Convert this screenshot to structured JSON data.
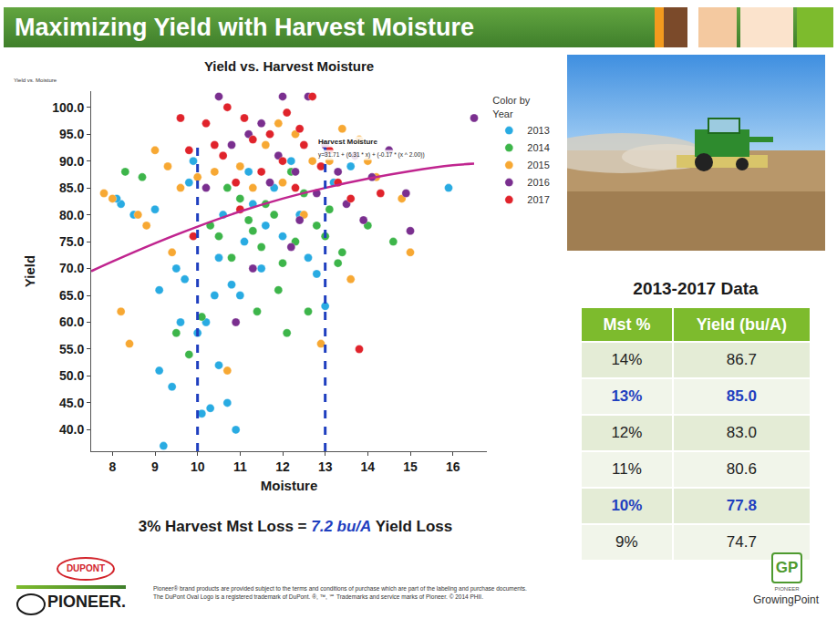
{
  "header": {
    "title": "Maximizing Yield with Harvest Moisture"
  },
  "chart_data": {
    "type": "scatter",
    "title": "Yield vs. Harvest Moisture",
    "subtitle": "Yield vs. Moisture",
    "x_label": "Moisture",
    "y_label": "Yield",
    "legend_title": "Color by Year",
    "legend": "right",
    "grid": false,
    "marker": "circle",
    "xlim": [
      7.5,
      16.8
    ],
    "xticks": [
      8,
      9,
      10,
      11,
      12,
      13,
      14,
      15,
      16
    ],
    "ylim": [
      36,
      103
    ],
    "yticks": [
      {
        "value": 40,
        "label": "40.0"
      },
      {
        "value": 45,
        "label": "45.0"
      },
      {
        "value": 50,
        "label": "50.0"
      },
      {
        "value": 55,
        "label": "55.0"
      },
      {
        "value": 60,
        "label": "60.0"
      },
      {
        "value": 65,
        "label": "65.0"
      },
      {
        "value": 70,
        "label": "70.0"
      },
      {
        "value": 75,
        "label": "75.0"
      },
      {
        "value": 80,
        "label": "80.0"
      },
      {
        "value": 85,
        "label": "85.0"
      },
      {
        "value": 90,
        "label": "90.0"
      },
      {
        "value": 95,
        "label": "95.0"
      },
      {
        "value": 100,
        "label": "100.0"
      }
    ],
    "series": [
      {
        "name": "2013",
        "color": "#29abe2",
        "x": [
          8.2,
          8.5,
          9.0,
          9.1,
          9.1,
          9.2,
          9.4,
          9.5,
          9.6,
          9.7,
          9.8,
          9.9,
          10.1,
          10.2,
          10.3,
          10.4,
          10.5,
          10.6,
          10.7,
          10.8,
          10.9,
          11.0,
          11.1,
          11.2,
          11.3,
          11.5,
          11.6,
          11.8,
          12.0,
          12.2,
          12.4,
          12.6,
          12.8,
          13.0,
          13.2,
          13.6,
          15.9,
          8.1,
          10.0,
          10.5
        ],
        "values": [
          82,
          80,
          81,
          66,
          51,
          37,
          48,
          70,
          60,
          68,
          86,
          90,
          43,
          60,
          44,
          65,
          72,
          80,
          45,
          67,
          40,
          65,
          75,
          88,
          82,
          70,
          78,
          85,
          76,
          90,
          80,
          72,
          69,
          63,
          86,
          89,
          85,
          83,
          58,
          52
        ]
      },
      {
        "name": "2014",
        "color": "#3db54a",
        "x": [
          8.3,
          8.7,
          9.5,
          9.8,
          10.1,
          10.3,
          10.5,
          10.8,
          11.0,
          11.2,
          11.3,
          11.5,
          11.6,
          11.8,
          12.0,
          12.1,
          12.3,
          12.5,
          12.6,
          12.8,
          13.0,
          13.1,
          13.4,
          14.0,
          14.6,
          11.4,
          10.7,
          12.2,
          11.9,
          13.3
        ],
        "values": [
          88,
          87,
          58,
          54,
          61,
          78,
          76,
          72,
          83,
          79,
          77,
          74,
          82,
          80,
          71,
          58,
          75,
          84,
          62,
          78,
          76,
          81,
          73,
          78,
          75,
          62,
          85,
          88,
          66,
          71
        ]
      },
      {
        "name": "2015",
        "color": "#f7a833",
        "x": [
          7.8,
          8.0,
          8.4,
          8.6,
          8.8,
          9.0,
          9.3,
          9.4,
          9.6,
          10.0,
          10.4,
          10.7,
          11.0,
          11.3,
          11.6,
          12.0,
          12.3,
          12.5,
          12.9,
          13.1,
          13.4,
          13.6,
          14.0,
          14.2,
          14.8,
          15.0,
          8.2,
          11.9,
          12.7,
          13.8
        ],
        "values": [
          84,
          83,
          56,
          80,
          78,
          92,
          89,
          73,
          85,
          87,
          88,
          51,
          89,
          85,
          93,
          86,
          95,
          80,
          56,
          90,
          96,
          68,
          90,
          87,
          83,
          73,
          62,
          97,
          90,
          94
        ]
      },
      {
        "name": "2016",
        "color": "#7a2f8f",
        "x": [
          10.2,
          10.5,
          10.9,
          11.2,
          11.5,
          11.7,
          11.9,
          12.0,
          12.3,
          12.4,
          12.6,
          12.8,
          13.0,
          13.3,
          13.5,
          13.7,
          14.1,
          14.5,
          14.9,
          15.0,
          16.5,
          11.3,
          12.2,
          10.8,
          13.9
        ],
        "values": [
          85,
          102,
          60,
          95,
          97,
          86,
          91,
          102,
          88,
          79,
          102,
          84,
          93,
          88,
          82,
          91,
          87,
          92,
          84,
          77,
          98,
          70,
          74,
          93,
          79
        ]
      },
      {
        "name": "2017",
        "color": "#e0232b",
        "x": [
          9.6,
          9.8,
          10.2,
          10.4,
          10.6,
          10.9,
          11.1,
          11.3,
          11.5,
          11.7,
          12.0,
          12.1,
          12.3,
          12.5,
          12.7,
          12.9,
          13.1,
          13.3,
          13.6,
          13.8,
          14.3,
          9.9,
          11.0,
          12.4,
          10.7
        ],
        "values": [
          98,
          92,
          97,
          93,
          91,
          86,
          98,
          94,
          88,
          95,
          90,
          99,
          85,
          93,
          102,
          89,
          92,
          86,
          83,
          55,
          84,
          76,
          81,
          96,
          100
        ]
      }
    ],
    "trendline": {
      "color": "#c0258f",
      "line_style": "solid",
      "x": [
        7.5,
        8,
        9,
        10,
        11,
        12,
        13,
        14,
        15,
        16,
        16.5
      ],
      "values": [
        69.5,
        71.3,
        74.7,
        77.8,
        80.6,
        83.0,
        85.0,
        86.7,
        88.1,
        89.2,
        89.5
      ]
    },
    "reference_lines": {
      "x": [
        10,
        13
      ],
      "color": "#1f3fbf",
      "line_style": "dashed"
    },
    "annotations": [
      {
        "text": "Harvest Moisture",
        "x": 12.8,
        "y": 93.6
      },
      {
        "text": "y=31.71 + (6.31 * x) + (-0.17 * (x ^ 2.00))",
        "x": 12.8,
        "y": 91.2
      }
    ]
  },
  "caption": {
    "parts": [
      {
        "text": "3% Harvest Mst Loss = "
      },
      {
        "text": "7.2 bu/A",
        "highlight": true
      },
      {
        "text": " Yield Loss"
      }
    ]
  },
  "table": {
    "title": "2013-2017 Data",
    "columns": [
      "Mst %",
      "Yield (bu/A)"
    ],
    "rows": [
      {
        "cells": [
          "14%",
          "86.7"
        ]
      },
      {
        "cells": [
          "13%",
          "85.0"
        ],
        "highlight": true
      },
      {
        "cells": [
          "12%",
          "83.0"
        ]
      },
      {
        "cells": [
          "11%",
          "80.6"
        ]
      },
      {
        "cells": [
          "10%",
          "77.8"
        ],
        "highlight": true
      },
      {
        "cells": [
          "9%",
          "74.7"
        ]
      }
    ]
  },
  "footer": {
    "dupont": "DUPONT",
    "pioneer": "PIONEER.",
    "disclaimer": [
      "Pioneer® brand products are provided subject to the terms and conditions of purchase which are part of the labeling and purchase documents.",
      "The DuPont Oval Logo is a registered trademark of DuPont. ®, ™, ℠ Trademarks and service marks of Pioneer. © 2014 PHII."
    ],
    "growingpoint_icon": "GP",
    "growingpoint_brand": "PIONEER",
    "growingpoint": "GrowingPoint"
  }
}
